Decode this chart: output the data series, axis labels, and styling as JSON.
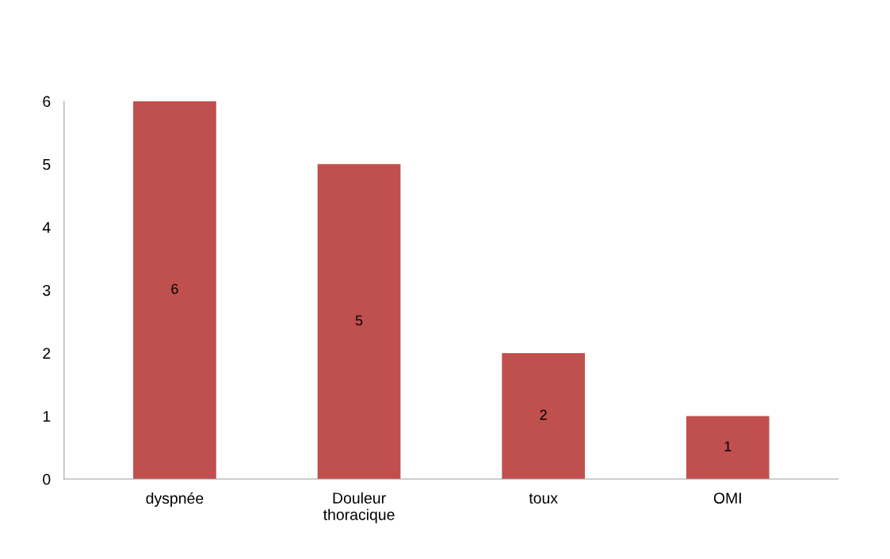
{
  "chart_data": {
    "type": "bar",
    "categories": [
      "dyspnée",
      "Douleur\nthoracique",
      "toux",
      "OMI"
    ],
    "values": [
      6,
      5,
      2,
      1
    ],
    "color": "#c0504d",
    "ylim": [
      0,
      6
    ],
    "yticks": [
      0,
      1,
      2,
      3,
      4,
      5,
      6
    ],
    "grid": false,
    "data_labels": true
  }
}
